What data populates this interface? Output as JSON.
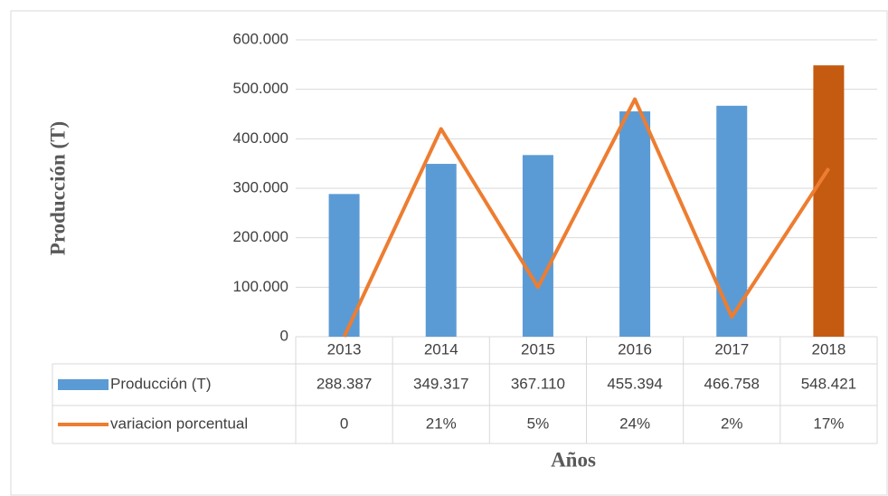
{
  "chart_data": {
    "type": "bar",
    "categories": [
      "2013",
      "2014",
      "2015",
      "2016",
      "2017",
      "2018"
    ],
    "series": [
      {
        "name": "Producción (T)",
        "type": "bar",
        "color": "#5b9bd5",
        "colors": [
          "#5b9bd5",
          "#5b9bd5",
          "#5b9bd5",
          "#5b9bd5",
          "#5b9bd5",
          "#c55a11"
        ],
        "values": [
          288387,
          349317,
          367110,
          455394,
          466758,
          548421
        ],
        "value_labels": [
          "288.387",
          "349.317",
          "367.110",
          "455.394",
          "466.758",
          "548.421"
        ]
      },
      {
        "name": "variacion porcentual",
        "type": "line",
        "axis": "y2",
        "color": "#ed7d31",
        "values": [
          0,
          21,
          5,
          24,
          2,
          17
        ],
        "value_labels": [
          "0",
          "21%",
          "5%",
          "24%",
          "2%",
          "17%"
        ]
      }
    ],
    "y_label": "Producción (T)",
    "x_label": "Años",
    "ylim": [
      0,
      600000
    ],
    "yticks": [
      0,
      {
        "value": 100000,
        "label": "100.000"
      },
      {
        "value": 200000,
        "label": "200.000"
      },
      {
        "value": 300000,
        "label": "300.000"
      },
      {
        "value": 400000,
        "label": "400.000"
      },
      {
        "value": 500000,
        "label": "500.000"
      },
      {
        "value": 600000,
        "label": "600.000"
      }
    ],
    "y2lim": [
      0,
      30
    ],
    "grid": true
  }
}
